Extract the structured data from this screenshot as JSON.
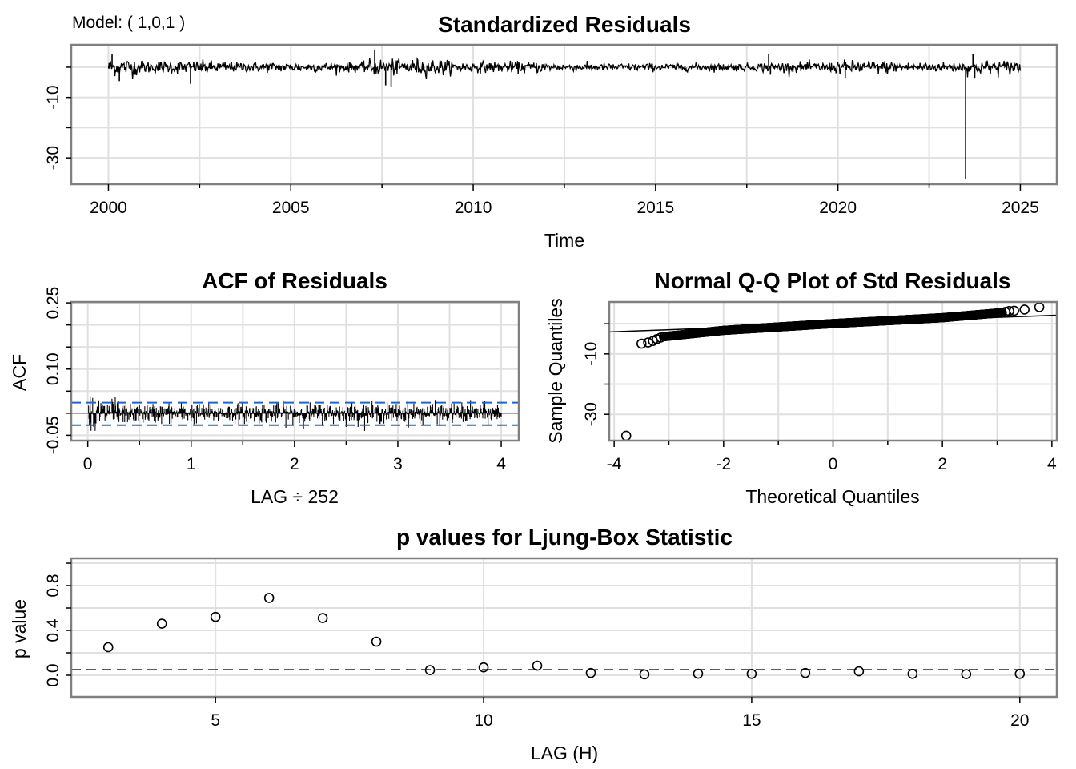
{
  "figure": {
    "model_label": "Model: ( 1,0,1 )",
    "colors": {
      "series": "#000000",
      "frame": "#808080",
      "grid": "#e0e0e0",
      "ci_line": "#1f63d0",
      "background": "#ffffff"
    }
  },
  "chart_data": [
    {
      "id": "std-residuals",
      "type": "line",
      "title": "Standardized Residuals",
      "xlabel": "Time",
      "ylabel": "",
      "xlim": [
        1998.98,
        2026.0
      ],
      "ylim": [
        -38.7,
        7.4
      ],
      "x_ticks": [
        2000,
        2005,
        2010,
        2015,
        2020,
        2025
      ],
      "x_tick_labels": [
        "2000",
        "2005",
        "2010",
        "2015",
        "2020",
        "2025"
      ],
      "x_minor_ticks": [
        2002.5,
        2007.5,
        2012.5,
        2017.5,
        2022.5
      ],
      "y_ticks": [
        0,
        -10,
        -20,
        -30
      ],
      "y_tick_labels": [
        "",
        "-10",
        "",
        "-30"
      ],
      "grid": true,
      "series_range": [
        2000.0,
        2025.0
      ],
      "observations_per_year": 252,
      "typical_range": [
        -4,
        3
      ],
      "notable_points": [
        {
          "x": 2000.1,
          "y": 4.2
        },
        {
          "x": 2000.3,
          "y": -4.6
        },
        {
          "x": 2002.25,
          "y": -5.5
        },
        {
          "x": 2007.3,
          "y": 5.6
        },
        {
          "x": 2007.6,
          "y": -6.0
        },
        {
          "x": 2007.75,
          "y": -6.4
        },
        {
          "x": 2018.1,
          "y": 4.5
        },
        {
          "x": 2018.15,
          "y": -2.5
        },
        {
          "x": 2020.2,
          "y": -3.5
        },
        {
          "x": 2023.5,
          "y": -37.1
        },
        {
          "x": 2023.7,
          "y": 4.3
        },
        {
          "x": 2023.75,
          "y": -3.5
        }
      ]
    },
    {
      "id": "acf-residuals",
      "type": "bar",
      "title": "ACF of Residuals",
      "xlabel": "LAG ÷ 252",
      "ylabel": "ACF",
      "xlim": [
        -0.16,
        4.17
      ],
      "ylim": [
        -0.062,
        0.252
      ],
      "x_ticks": [
        0,
        1,
        2,
        3,
        4
      ],
      "x_tick_labels": [
        "0",
        "1",
        "2",
        "3",
        "4"
      ],
      "x_minor_ticks": [
        0.5,
        1.5,
        2.5,
        3.5
      ],
      "y_ticks": [
        -0.05,
        0.0,
        0.05,
        0.1,
        0.15,
        0.2,
        0.25
      ],
      "y_tick_labels": [
        "-0.05",
        "",
        "",
        "0.10",
        "",
        "",
        "0.25"
      ],
      "grid": true,
      "max_lag": 1008,
      "lag_scale": 252,
      "ci_upper": 0.024,
      "ci_lower": -0.027,
      "max_acf": 0.043,
      "min_acf": -0.04
    },
    {
      "id": "qq-plot",
      "type": "scatter",
      "title": "Normal Q-Q Plot of Std Residuals",
      "xlabel": "Theoretical Quantiles",
      "ylabel": "Sample Quantiles",
      "xlim": [
        -4.09,
        4.09
      ],
      "ylim": [
        -38.7,
        7.2
      ],
      "x_ticks": [
        -4,
        -2,
        0,
        2,
        4
      ],
      "x_tick_labels": [
        "-4",
        "-2",
        "0",
        "2",
        "4"
      ],
      "x_minor_ticks": [
        -3,
        -1,
        1,
        3
      ],
      "y_ticks": [
        0,
        -10,
        -20,
        -30
      ],
      "y_tick_labels": [
        "",
        "-10",
        "",
        "-30"
      ],
      "grid": true,
      "reference_line": {
        "intercept": 0.05,
        "slope": 0.68
      },
      "tail_points": [
        {
          "x": -3.78,
          "y": -37.1
        },
        {
          "x": -3.5,
          "y": -6.6
        },
        {
          "x": -3.38,
          "y": -6.2
        },
        {
          "x": -3.29,
          "y": -5.7
        },
        {
          "x": -3.22,
          "y": -5.1
        },
        {
          "x": -3.15,
          "y": -4.6
        },
        {
          "x": 3.15,
          "y": 3.9
        },
        {
          "x": 3.22,
          "y": 4.2
        },
        {
          "x": 3.31,
          "y": 4.3
        },
        {
          "x": 3.5,
          "y": 4.7
        },
        {
          "x": 3.77,
          "y": 5.5
        }
      ],
      "body_curve": [
        {
          "x": -3.1,
          "y": -4.3
        },
        {
          "x": -2.0,
          "y": -2.2
        },
        {
          "x": 0.0,
          "y": 0.05
        },
        {
          "x": 2.0,
          "y": 2.0
        },
        {
          "x": 3.1,
          "y": 3.7
        }
      ]
    },
    {
      "id": "ljung-box",
      "type": "scatter",
      "title": "p values for Ljung-Box Statistic",
      "xlabel": "LAG (H)",
      "ylabel": "p value",
      "xlim": [
        2.31,
        20.69
      ],
      "ylim": [
        -0.193,
        1.043
      ],
      "x_ticks": [
        5,
        10,
        15,
        20
      ],
      "x_tick_labels": [
        "5",
        "10",
        "15",
        "20"
      ],
      "y_ticks": [
        0.0,
        0.2,
        0.4,
        0.6,
        0.8,
        1.0
      ],
      "y_tick_labels": [
        "0.0",
        "",
        "0.4",
        "",
        "0.8",
        ""
      ],
      "grid": true,
      "significance_line": 0.05,
      "x": [
        3,
        4,
        5,
        6,
        7,
        8,
        9,
        10,
        11,
        12,
        13,
        14,
        15,
        16,
        17,
        18,
        19,
        20
      ],
      "values": [
        0.25,
        0.46,
        0.52,
        0.69,
        0.51,
        0.3,
        0.046,
        0.07,
        0.085,
        0.02,
        0.008,
        0.014,
        0.012,
        0.02,
        0.035,
        0.012,
        0.01,
        0.012
      ]
    }
  ]
}
